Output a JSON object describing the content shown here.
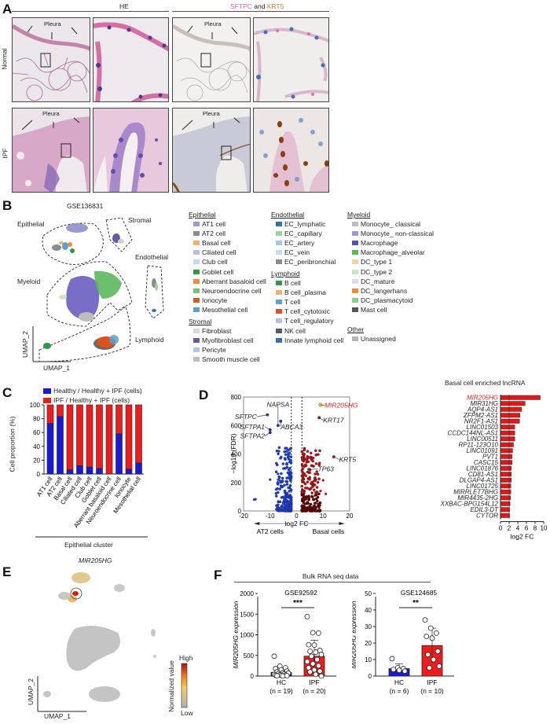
{
  "panelA": {
    "letter": "A",
    "he_header": "HE",
    "ihc_header_part1": "SFTPC",
    "ihc_header_and": " and ",
    "ihc_header_part2": "KRT5",
    "row_labels": [
      "Normal",
      "IPF"
    ],
    "pleura_label": "Pleura",
    "colors": {
      "sftpc": "#e060c0",
      "krt5": "#d07a20"
    }
  },
  "panelB": {
    "letter": "B",
    "title": "GSE136831",
    "cluster_labels": [
      "Epithelial",
      "Stromal",
      "Endothelial",
      "Myeloid",
      "Lymphoid"
    ],
    "xlabel": "UMAP_1",
    "ylabel": "UMAP_2",
    "legend": {
      "Epithelial": [
        {
          "label": "AT1 cell",
          "color": "#9a9ad0"
        },
        {
          "label": "AT2 cell",
          "color": "#8c8c8c"
        },
        {
          "label": "Basal cell",
          "color": "#f5b072"
        },
        {
          "label": "Ciliated cell",
          "color": "#c0bedd"
        },
        {
          "label": "Club cell",
          "color": "#c6d9ef"
        },
        {
          "label": "Goblet cell",
          "color": "#2e9a48"
        },
        {
          "label": "Aberrant basaloid cell",
          "color": "#f08a38"
        },
        {
          "label": "Neuroendocrine cell",
          "color": "#78c078"
        },
        {
          "label": "Ionocyte",
          "color": "#d95a1a"
        },
        {
          "label": "Mesothelial cell",
          "color": "#5aa0d0"
        }
      ],
      "Stromal": [
        {
          "label": "Fibroblast",
          "color": "#d8d8d8"
        },
        {
          "label": "Myofibroblast cell",
          "color": "#6a5aa8"
        },
        {
          "label": "Pericyte",
          "color": "#a8cce4"
        },
        {
          "label": "Smooth muscle cell",
          "color": "#bdbdbd"
        }
      ],
      "Endothelial": [
        {
          "label": "EC_lymphatic",
          "color": "#2f70b0"
        },
        {
          "label": "EC_capillary",
          "color": "#9ad49a"
        },
        {
          "label": "EC_artery",
          "color": "#9ecae1"
        },
        {
          "label": "EC_vein",
          "color": "#c6dbef"
        },
        {
          "label": "EC_peribronchial",
          "color": "#8c8c8c"
        }
      ],
      "Lymphoid": [
        {
          "label": "B cell",
          "color": "#2e9a48"
        },
        {
          "label": "B cell_plasma",
          "color": "#f5b072"
        },
        {
          "label": "T cell",
          "color": "#5aa0d0"
        },
        {
          "label": "T cell_cytotoxic",
          "color": "#e0501a"
        },
        {
          "label": "T cell_regulatory",
          "color": "#b8bce8"
        },
        {
          "label": "NK cell",
          "color": "#5a5a5a"
        },
        {
          "label": "Innate lymphoid cell",
          "color": "#2f70b0"
        }
      ],
      "Myeloid": [
        {
          "label": "Monocyte_ classical",
          "color": "#bdbdbd"
        },
        {
          "label": "Monocyte_ non-classical",
          "color": "#9a9ad0"
        },
        {
          "label": "Macrophage",
          "color": "#5a50a8"
        },
        {
          "label": "Macrophage_alveolar",
          "color": "#5cb85c"
        },
        {
          "label": "DC_type 1",
          "color": "#f5d0a0"
        },
        {
          "label": "DC_type 2",
          "color": "#c8e6c0"
        },
        {
          "label": "DC_mature",
          "color": "#dcdcee"
        },
        {
          "label": "DC_langerhans",
          "color": "#f08a38"
        },
        {
          "label": "DC_plasmacytoid",
          "color": "#8ccf8c"
        },
        {
          "label": "Mast cell",
          "color": "#555555"
        }
      ],
      "Other": [
        {
          "label": "Unassigned",
          "color": "#b5b5b5"
        }
      ]
    }
  },
  "panelC": {
    "letter": "C",
    "legend": [
      "Healthy / Healthy + IPF (cells)",
      "IPF / Healthy + IPF (cells)"
    ],
    "ylabel": "Cell proportion (%)",
    "xlabel": "Epithelial cluster"
  },
  "panelD": {
    "letter": "D",
    "xlabel": "log2 FC",
    "ylabel": "−log10 (FDR)",
    "left_group": "AT2 cells",
    "right_group": "Basal cells",
    "gene_labels": [
      "SFTPC",
      "NAPSA",
      "SFTPA1",
      "ABCA3",
      "SFTPA2",
      "MIR205HG",
      "KRT17",
      "TP63",
      "KRT5"
    ],
    "bar_title": "Basal cell enriched lncRNA",
    "bar_xlabel": "log2 FC"
  },
  "panelE": {
    "letter": "E",
    "title": "MIR205HG",
    "xlabel": "UMAP_1",
    "ylabel": "UMAP_2",
    "colorbar_label": "Normalized value",
    "colorbar_high": "High",
    "colorbar_low": "Low"
  },
  "panelF": {
    "letter": "F",
    "header": "Bulk RNA seq data",
    "ylabel": "MIR205HG expression"
  },
  "chart_data": [
    {
      "id": "C",
      "type": "bar",
      "stacked": true,
      "title": "",
      "xlabel": "Epithelial cluster",
      "ylabel": "Cell proportion (%)",
      "ylim": [
        0,
        100
      ],
      "yticks": [
        0,
        20,
        40,
        60,
        80,
        100
      ],
      "categories": [
        "AT1 cell",
        "AT2 cell",
        "Basal cell",
        "Ciliated cell",
        "Club cell",
        "Goblet cell",
        "Aberrant basaloid cell",
        "Neuroendocrine cell",
        "Ionocyte",
        "Mesothelial cell"
      ],
      "series": [
        {
          "name": "Healthy / Healthy + IPF (cells)",
          "color": "#1a1ad6",
          "values": [
            73,
            83,
            6,
            12,
            10,
            8,
            0,
            58,
            7,
            16
          ]
        },
        {
          "name": "IPF / Healthy + IPF (cells)",
          "color": "#ee1c1c",
          "values": [
            27,
            17,
            94,
            88,
            90,
            92,
            100,
            42,
            93,
            84
          ]
        }
      ],
      "legend_position": "top"
    },
    {
      "id": "D-volcano",
      "type": "scatter",
      "xlabel": "log2 FC",
      "ylabel": "−log10 (FDR)",
      "xlim": [
        -20,
        20
      ],
      "ylim": [
        0,
        800
      ],
      "xticks": [
        -20,
        -10,
        0,
        10,
        20
      ],
      "yticks": [
        0,
        200,
        400,
        600,
        800
      ],
      "thresholds_x": [
        -2,
        2
      ],
      "labeled_points": [
        {
          "gene": "SFTPC",
          "x": -11,
          "y": 675,
          "group": "AT2 cells"
        },
        {
          "gene": "NAPSA",
          "x": -7,
          "y": 600,
          "group": "AT2 cells"
        },
        {
          "gene": "SFTPA1",
          "x": -10,
          "y": 570,
          "group": "AT2 cells"
        },
        {
          "gene": "ABCA3",
          "x": -6,
          "y": 630,
          "group": "AT2 cells"
        },
        {
          "gene": "SFTPA2",
          "x": -10,
          "y": 550,
          "group": "AT2 cells"
        },
        {
          "gene": "MIR205HG",
          "x": 9,
          "y": 745,
          "group": "Basal cells",
          "highlight": true
        },
        {
          "gene": "KRT17",
          "x": 8.5,
          "y": 655,
          "group": "Basal cells"
        },
        {
          "gene": "TP63",
          "x": 5,
          "y": 290,
          "group": "Basal cells"
        },
        {
          "gene": "KRT5",
          "x": 14,
          "y": 380,
          "group": "Basal cells"
        }
      ],
      "series_colors": {
        "AT2 cells": "#1f3fbf",
        "Basal cells": "#b01818"
      }
    },
    {
      "id": "D-lncRNA",
      "type": "bar",
      "orientation": "horizontal",
      "title": "Basal cell enriched lncRNA",
      "xlabel": "log2 FC",
      "xlim": [
        0,
        10
      ],
      "xticks": [
        0,
        2,
        4,
        6,
        8,
        10
      ],
      "categories": [
        "MIR205HG",
        "MIR31HG",
        "AQP4-AS1",
        "ZFPM2-AS1",
        "NR2F1-AS1",
        "LINC01503",
        "CCDC144NL-AS1",
        "LINC00511",
        "RP11-123O10",
        "LINC01091",
        "PVT1",
        "CASC15",
        "LINC01876",
        "CD81-AS1",
        "DLGAP4-AS1",
        "LINC01725",
        "MIRRLET7BHG",
        "MIR4435-2HG",
        "XXBAC-BPG154L12",
        "EDIL3-DT",
        "CYTOR"
      ],
      "values": [
        9.2,
        5.7,
        4.9,
        4.5,
        4.4,
        3.3,
        3.3,
        3.3,
        3.0,
        2.8,
        2.7,
        2.7,
        2.5,
        2.5,
        2.5,
        2.4,
        2.4,
        2.3,
        2.2,
        2.1,
        2.1
      ],
      "color": "#e01818"
    },
    {
      "id": "F-GSE92592",
      "type": "bar",
      "title": "GSE92592",
      "ylabel": "MIR205HG expression",
      "ylim": [
        0,
        2000
      ],
      "yticks": [
        0,
        500,
        1000,
        1500,
        2000
      ],
      "categories": [
        "HC (n = 19)",
        "IPF (n = 20)"
      ],
      "values": [
        90,
        480
      ],
      "error_sd": [
        110,
        390
      ],
      "colors": [
        "#1a1ad6",
        "#ee1c1c"
      ],
      "significance": "***",
      "points": {
        "HC": [
          480,
          240,
          200,
          180,
          150,
          120,
          100,
          80,
          70,
          60,
          50,
          40,
          30,
          25,
          20,
          15,
          10,
          5,
          0
        ],
        "IPF": [
          1440,
          1050,
          1040,
          760,
          750,
          620,
          600,
          580,
          520,
          480,
          400,
          350,
          300,
          250,
          200,
          150,
          120,
          100,
          40,
          0
        ]
      }
    },
    {
      "id": "F-GSE124685",
      "type": "bar",
      "title": "GSE124685",
      "ylabel": "MIR205HG expression",
      "ylim": [
        0,
        50
      ],
      "yticks": [
        0,
        10,
        20,
        30,
        40,
        50
      ],
      "categories": [
        "HC (n = 6)",
        "IPF (n = 10)"
      ],
      "values": [
        4.5,
        18.5
      ],
      "error_sd": [
        3,
        10.5
      ],
      "colors": [
        "#1a1ad6",
        "#ee1c1c"
      ],
      "significance": "**",
      "points": {
        "HC": [
          10.5,
          5,
          4.5,
          4,
          3.5,
          3
        ],
        "IPF": [
          34,
          29,
          26,
          24,
          23,
          15,
          13,
          10,
          6,
          5
        ]
      }
    }
  ]
}
